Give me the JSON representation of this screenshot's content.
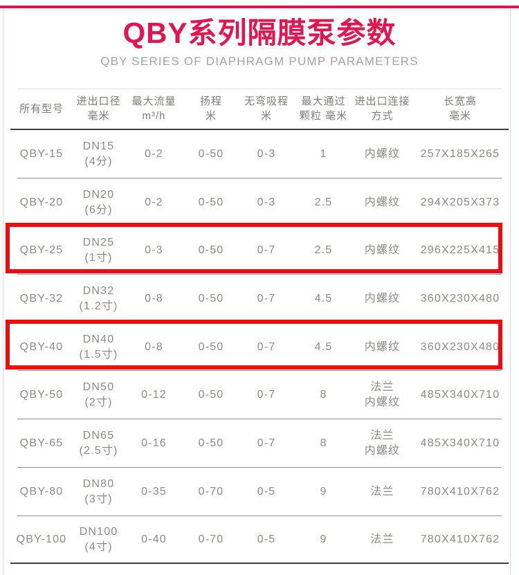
{
  "header": {
    "title": "QBY系列隔膜泵参数",
    "subtitle": "QBY SERIES OF DIAPHRAGM PUMP PARAMETERS"
  },
  "colors": {
    "accent": "#e2164e",
    "highlight_red": "#ee0d0d",
    "header_text": "#7e7e77",
    "cell_text": "#8b8b84",
    "subtitle_text": "#a3a3a3"
  },
  "chart_data": {
    "type": "table",
    "title": "QBY系列隔膜泵参数",
    "subtitle": "QBY SERIES OF DIAPHRAGM PUMP PARAMETERS",
    "columns": [
      "所有型号",
      "进出口径 毫米",
      "最大流量 m³/h",
      "扬程 米",
      "无弯吸程 米",
      "最大通过 颗粒 毫米",
      "进出口连接 方式",
      "长宽高 毫米"
    ],
    "rows": [
      [
        "QBY-15",
        "DN15 (4分)",
        "0-2",
        "0-50",
        "0-3",
        "1",
        "内螺纹",
        "257X185X265"
      ],
      [
        "QBY-20",
        "DN20 (6分)",
        "0-2",
        "0-50",
        "0-3",
        "2.5",
        "内螺纹",
        "294X205X373"
      ],
      [
        "QBY-25",
        "DN25 (1寸)",
        "0-3",
        "0-50",
        "0-7",
        "2.5",
        "内螺纹",
        "296X225X415"
      ],
      [
        "QBY-32",
        "DN32 (1.2寸)",
        "0-8",
        "0-50",
        "0-7",
        "4.5",
        "内螺纹",
        "360X230X480"
      ],
      [
        "QBY-40",
        "DN40 (1.5寸)",
        "0-8",
        "0-50",
        "0-7",
        "4.5",
        "内螺纹",
        "360X230X480"
      ],
      [
        "QBY-50",
        "DN50 (2寸)",
        "0-12",
        "0-50",
        "0-7",
        "8",
        "法兰 内螺纹",
        "485X340X710"
      ],
      [
        "QBY-65",
        "DN65 (2.5寸)",
        "0-16",
        "0-50",
        "0-7",
        "8",
        "法兰 内螺纹",
        "485X340X710"
      ],
      [
        "QBY-80",
        "DN80 (3寸)",
        "0-35",
        "0-70",
        "0-5",
        "9",
        "法兰",
        "780X410X762"
      ],
      [
        "QBY-100",
        "DN100 (4寸)",
        "0-40",
        "0-70",
        "0-5",
        "9",
        "法兰",
        "780X410X762"
      ]
    ],
    "highlighted_rows": [
      "QBY-25",
      "QBY-40"
    ]
  },
  "table": {
    "columns": [
      {
        "key": "model",
        "lines": [
          "所有型号"
        ]
      },
      {
        "key": "port-diameter",
        "lines": [
          "进出口径",
          "毫米"
        ]
      },
      {
        "key": "max-flow",
        "lines": [
          "最大流量",
          "m³/h"
        ]
      },
      {
        "key": "head",
        "lines": [
          "扬程",
          "米"
        ]
      },
      {
        "key": "suction",
        "lines": [
          "无弯吸程",
          "米"
        ]
      },
      {
        "key": "max-particle",
        "lines": [
          "最大通过",
          "颗粒 毫米"
        ]
      },
      {
        "key": "connection",
        "lines": [
          "进出口连接",
          "方式"
        ]
      },
      {
        "key": "dimensions",
        "lines": [
          "长宽高",
          "毫米"
        ]
      }
    ],
    "rows": [
      {
        "highlighted": false,
        "cells": [
          [
            "QBY-15"
          ],
          [
            "DN15",
            "(4分)"
          ],
          [
            "0-2"
          ],
          [
            "0-50"
          ],
          [
            "0-3"
          ],
          [
            "1"
          ],
          [
            "内螺纹"
          ],
          [
            "257X185X265"
          ]
        ]
      },
      {
        "highlighted": false,
        "cells": [
          [
            "QBY-20"
          ],
          [
            "DN20",
            "(6分)"
          ],
          [
            "0-2"
          ],
          [
            "0-50"
          ],
          [
            "0-3"
          ],
          [
            "2.5"
          ],
          [
            "内螺纹"
          ],
          [
            "294X205X373"
          ]
        ]
      },
      {
        "highlighted": true,
        "cells": [
          [
            "QBY-25"
          ],
          [
            "DN25",
            "(1寸)"
          ],
          [
            "0-3"
          ],
          [
            "0-50"
          ],
          [
            "0-7"
          ],
          [
            "2.5"
          ],
          [
            "内螺纹"
          ],
          [
            "296X225X415"
          ]
        ]
      },
      {
        "highlighted": false,
        "cells": [
          [
            "QBY-32"
          ],
          [
            "DN32",
            "(1.2寸)"
          ],
          [
            "0-8"
          ],
          [
            "0-50"
          ],
          [
            "0-7"
          ],
          [
            "4.5"
          ],
          [
            "内螺纹"
          ],
          [
            "360X230X480"
          ]
        ]
      },
      {
        "highlighted": true,
        "cells": [
          [
            "QBY-40"
          ],
          [
            "DN40",
            "(1.5寸)"
          ],
          [
            "0-8"
          ],
          [
            "0-50"
          ],
          [
            "0-7"
          ],
          [
            "4.5"
          ],
          [
            "内螺纹"
          ],
          [
            "360X230X480"
          ]
        ]
      },
      {
        "highlighted": false,
        "cells": [
          [
            "QBY-50"
          ],
          [
            "DN50",
            "(2寸)"
          ],
          [
            "0-12"
          ],
          [
            "0-50"
          ],
          [
            "0-7"
          ],
          [
            "8"
          ],
          [
            "法兰",
            "内螺纹"
          ],
          [
            "485X340X710"
          ]
        ]
      },
      {
        "highlighted": false,
        "cells": [
          [
            "QBY-65"
          ],
          [
            "DN65",
            "(2.5寸)"
          ],
          [
            "0-16"
          ],
          [
            "0-50"
          ],
          [
            "0-7"
          ],
          [
            "8"
          ],
          [
            "法兰",
            "内螺纹"
          ],
          [
            "485X340X710"
          ]
        ]
      },
      {
        "highlighted": false,
        "cells": [
          [
            "QBY-80"
          ],
          [
            "DN80",
            "(3寸)"
          ],
          [
            "0-35"
          ],
          [
            "0-70"
          ],
          [
            "0-5"
          ],
          [
            "9"
          ],
          [
            "法兰"
          ],
          [
            "780X410X762"
          ]
        ]
      },
      {
        "highlighted": false,
        "cells": [
          [
            "QBY-100"
          ],
          [
            "DN100",
            "(4寸)"
          ],
          [
            "0-40"
          ],
          [
            "0-70"
          ],
          [
            "0-5"
          ],
          [
            "9"
          ],
          [
            "法兰"
          ],
          [
            "780X410X762"
          ]
        ]
      }
    ]
  }
}
